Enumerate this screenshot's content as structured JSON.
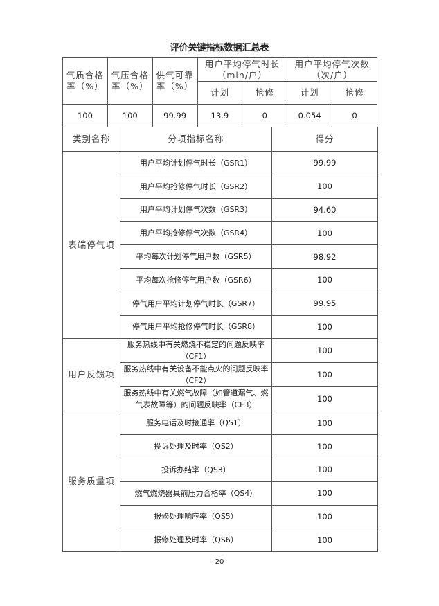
{
  "title": "评价关键指标数据汇总表",
  "summary": {
    "headers": [
      "气质合格率（%）",
      "气压合格率（%）",
      "供气可靠率（%）",
      "用户平均停气时长（min/户）",
      "用户平均停气次数（次/户）"
    ],
    "subheaders": [
      "计划",
      "抢修",
      "计划",
      "抢修"
    ],
    "values": [
      "100",
      "100",
      "99.99",
      "13.9",
      "0",
      "0.054",
      "0"
    ]
  },
  "detail_headers": [
    "类别名称",
    "分项指标名称",
    "得分"
  ],
  "groups": [
    {
      "category": "表端停气项",
      "items": [
        {
          "name": "用户平均计划停气时长（GSR1）",
          "score": "99.99"
        },
        {
          "name": "用户平均抢修停气时长（GSR2）",
          "score": "100"
        },
        {
          "name": "用户平均计划停气次数（GSR3）",
          "score": "94.60"
        },
        {
          "name": "用户平均抢修停气次数（GSR4）",
          "score": "100"
        },
        {
          "name": "平均每次计划停气用户数（GSR5）",
          "score": "98.92"
        },
        {
          "name": "平均每次抢修停气用户数（GSR6）",
          "score": "100"
        },
        {
          "name": "停气用户平均计划停气时长（GSR7）",
          "score": "99.95"
        },
        {
          "name": "停气用户平均抢修停气时长（GSR8）",
          "score": "100"
        }
      ]
    },
    {
      "category": "用户反馈项",
      "items": [
        {
          "name": "服务热线中有关燃烧不稳定的问题反映率（CF1）",
          "score": "100"
        },
        {
          "name": "服务热线中有关设备不能点火的问题反映率（CF2）",
          "score": "100"
        },
        {
          "name": "服务热线中有关燃气故障（如管道漏气、燃气表故障等）的问题反映率（CF3）",
          "score": "100"
        }
      ]
    },
    {
      "category": "服务质量项",
      "items": [
        {
          "name": "服务电话及时接通率（QS1）",
          "score": "100"
        },
        {
          "name": "投诉处理及时率（QS2）",
          "score": "100"
        },
        {
          "name": "投诉办结率（QS3）",
          "score": "100"
        },
        {
          "name": "燃气燃烧器具前压力合格率（QS4）",
          "score": "100"
        },
        {
          "name": "报修处理响应率（QS5）",
          "score": "100"
        },
        {
          "name": "报修处理及时率（QS6）",
          "score": "100"
        }
      ]
    }
  ],
  "page_number": "20"
}
